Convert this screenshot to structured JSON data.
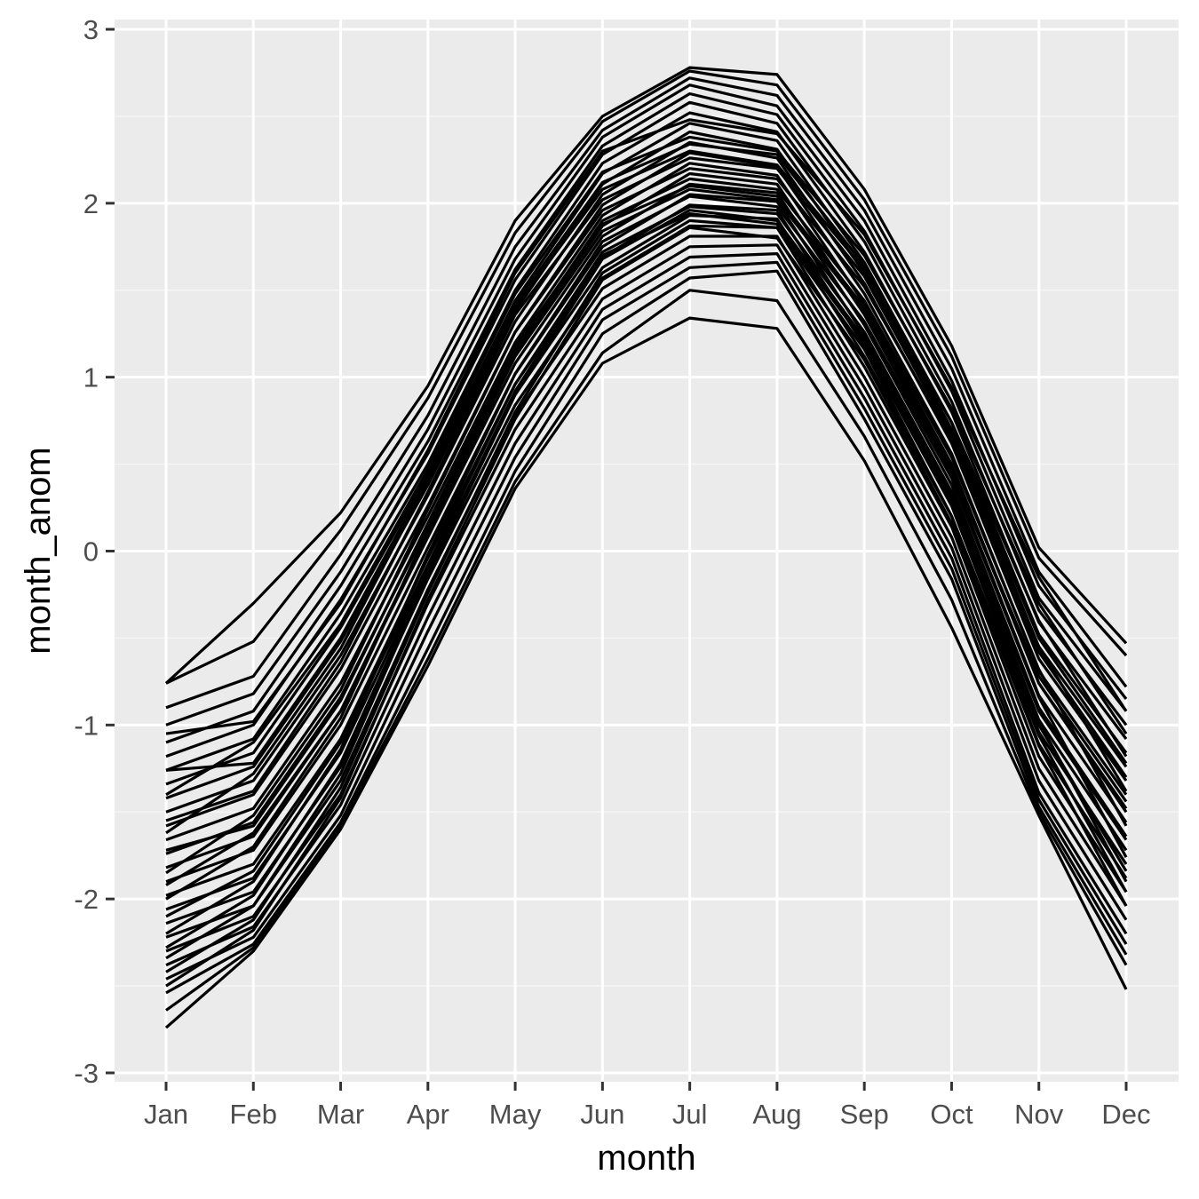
{
  "chart_data": {
    "type": "line",
    "title": "",
    "xlabel": "month",
    "ylabel": "month_anom",
    "categories": [
      "Jan",
      "Feb",
      "Mar",
      "Apr",
      "May",
      "Jun",
      "Jul",
      "Aug",
      "Sep",
      "Oct",
      "Nov",
      "Dec"
    ],
    "yticks": [
      3,
      2,
      1,
      0,
      -1,
      -2,
      -3
    ],
    "ytick_labels": [
      "3",
      "2",
      "1",
      "0",
      "-1",
      "-2",
      "-3"
    ],
    "ylim": [
      -3.0,
      3.0
    ],
    "grid": true,
    "legend": "none",
    "colors": {
      "panel_background": "#ebebeb",
      "grid_major": "#ffffff",
      "grid_minor": "#f5f5f5",
      "line": "#000000",
      "tick": "#333333"
    },
    "series_note_values": [],
    "series": [
      {
        "values": [
          -0.76,
          -0.3,
          0.22,
          0.95,
          1.9,
          2.5,
          2.78,
          2.74,
          2.08,
          1.18,
          0.02,
          -0.53
        ]
      },
      {
        "values": [
          -0.76,
          -0.52,
          0.12,
          0.88,
          1.83,
          2.47,
          2.76,
          2.68,
          2.02,
          1.12,
          -0.04,
          -0.6
        ]
      },
      {
        "values": [
          -0.9,
          -0.72,
          -0.02,
          0.78,
          1.75,
          2.42,
          2.72,
          2.62,
          1.96,
          1.05,
          -0.12,
          -0.78
        ]
      },
      {
        "values": [
          -1.0,
          -0.82,
          -0.12,
          0.7,
          1.68,
          2.38,
          2.68,
          2.56,
          1.9,
          0.98,
          -0.2,
          -0.85
        ]
      },
      {
        "values": [
          -1.1,
          -0.92,
          -0.2,
          0.63,
          1.62,
          2.33,
          2.63,
          2.51,
          1.84,
          0.92,
          -0.27,
          -0.92
        ]
      },
      {
        "values": [
          -1.18,
          -1.0,
          -0.28,
          0.56,
          1.56,
          2.28,
          2.58,
          2.46,
          1.78,
          0.86,
          -0.34,
          -1.0
        ]
      },
      {
        "values": [
          -1.26,
          -1.08,
          -0.36,
          0.5,
          1.5,
          2.23,
          2.52,
          2.41,
          1.72,
          0.8,
          -0.41,
          -1.08
        ]
      },
      {
        "values": [
          -1.34,
          -1.16,
          -0.44,
          0.44,
          1.44,
          2.17,
          2.46,
          2.36,
          1.66,
          0.74,
          -0.48,
          -1.16
        ]
      },
      {
        "values": [
          -1.42,
          -1.24,
          -0.52,
          0.38,
          1.38,
          2.11,
          2.41,
          2.31,
          1.6,
          0.68,
          -0.55,
          -1.24
        ]
      },
      {
        "values": [
          -1.5,
          -1.32,
          -0.6,
          0.32,
          1.32,
          2.05,
          2.35,
          2.26,
          1.54,
          0.62,
          -0.62,
          -1.32
        ]
      },
      {
        "values": [
          -1.58,
          -1.4,
          -0.68,
          0.26,
          1.26,
          1.99,
          2.29,
          2.21,
          1.48,
          0.56,
          -0.69,
          -1.4
        ]
      },
      {
        "values": [
          -1.66,
          -1.48,
          -0.76,
          0.2,
          1.2,
          1.93,
          2.23,
          2.16,
          1.42,
          0.5,
          -0.76,
          -1.48
        ]
      },
      {
        "values": [
          -1.74,
          -1.56,
          -0.84,
          0.14,
          1.14,
          1.87,
          2.17,
          2.11,
          1.36,
          0.44,
          -0.83,
          -1.56
        ]
      },
      {
        "values": [
          -1.82,
          -1.64,
          -0.92,
          0.08,
          1.08,
          1.81,
          2.11,
          2.06,
          1.3,
          0.38,
          -0.9,
          -1.64
        ]
      },
      {
        "values": [
          -1.9,
          -1.72,
          -1.0,
          0.02,
          1.02,
          1.75,
          2.05,
          2.01,
          1.24,
          0.32,
          -0.97,
          -1.72
        ]
      },
      {
        "values": [
          -1.98,
          -1.8,
          -1.08,
          -0.04,
          0.96,
          1.69,
          1.99,
          1.96,
          1.18,
          0.26,
          -1.04,
          -1.8
        ]
      },
      {
        "values": [
          -2.06,
          -1.88,
          -1.16,
          -0.1,
          0.9,
          1.63,
          1.93,
          1.91,
          1.12,
          0.2,
          -1.11,
          -1.88
        ]
      },
      {
        "values": [
          -2.14,
          -1.96,
          -1.24,
          -0.16,
          0.84,
          1.57,
          1.87,
          1.86,
          1.06,
          0.14,
          -1.18,
          -1.96
        ]
      },
      {
        "values": [
          -2.22,
          -2.04,
          -1.32,
          -0.22,
          0.78,
          1.51,
          1.81,
          1.81,
          1.0,
          0.08,
          -1.25,
          -2.04
        ]
      },
      {
        "values": [
          -2.3,
          -2.1,
          -1.4,
          -0.3,
          0.7,
          1.45,
          1.75,
          1.76,
          0.94,
          0.02,
          -1.32,
          -2.12
        ]
      },
      {
        "values": [
          -2.38,
          -2.16,
          -1.46,
          -0.38,
          0.62,
          1.39,
          1.69,
          1.71,
          0.88,
          -0.04,
          -1.39,
          -2.2
        ]
      },
      {
        "values": [
          -2.46,
          -2.22,
          -1.52,
          -0.46,
          0.54,
          1.33,
          1.63,
          1.66,
          0.82,
          -0.1,
          -1.43,
          -2.26
        ]
      },
      {
        "values": [
          -2.54,
          -2.26,
          -1.56,
          -0.56,
          0.46,
          1.25,
          1.57,
          1.61,
          0.76,
          -0.16,
          -1.47,
          -2.32
        ]
      },
      {
        "values": [
          -2.64,
          -2.28,
          -1.58,
          -0.62,
          0.4,
          1.14,
          1.5,
          1.44,
          0.66,
          -0.28,
          -1.5,
          -2.38
        ]
      },
      {
        "values": [
          -2.74,
          -2.3,
          -1.6,
          -0.66,
          0.36,
          1.08,
          1.34,
          1.28,
          0.52,
          -0.44,
          -1.52,
          -2.52
        ]
      },
      {
        "values": [
          -1.05,
          -0.98,
          -0.3,
          0.58,
          1.6,
          2.3,
          2.48,
          2.4,
          1.82,
          0.94,
          -0.15,
          -0.92
        ]
      },
      {
        "values": [
          -1.4,
          -1.1,
          -0.42,
          0.47,
          1.48,
          2.18,
          2.38,
          2.3,
          1.7,
          0.82,
          -0.3,
          -1.05
        ]
      },
      {
        "values": [
          -1.62,
          -1.28,
          -0.56,
          0.4,
          1.4,
          2.08,
          2.3,
          2.22,
          1.62,
          0.74,
          -0.4,
          -1.18
        ]
      },
      {
        "values": [
          -1.85,
          -1.52,
          -0.8,
          0.24,
          1.26,
          1.96,
          2.2,
          2.14,
          1.52,
          0.64,
          -0.55,
          -1.38
        ]
      },
      {
        "values": [
          -2.0,
          -1.7,
          -0.96,
          0.12,
          1.16,
          1.9,
          2.14,
          2.08,
          1.44,
          0.54,
          -0.68,
          -1.58
        ]
      },
      {
        "values": [
          -2.2,
          -1.9,
          -1.14,
          -0.02,
          1.02,
          1.78,
          2.04,
          1.98,
          1.32,
          0.42,
          -0.84,
          -1.76
        ]
      },
      {
        "values": [
          -2.34,
          -2.04,
          -1.28,
          -0.14,
          0.9,
          1.68,
          1.96,
          1.9,
          1.22,
          0.3,
          -0.98,
          -1.9
        ]
      },
      {
        "values": [
          -2.5,
          -2.18,
          -1.42,
          -0.28,
          0.76,
          1.56,
          1.86,
          1.8,
          1.1,
          0.16,
          -1.12,
          -2.04
        ]
      },
      {
        "values": [
          -1.26,
          -1.22,
          -0.5,
          0.42,
          1.42,
          2.12,
          2.34,
          2.28,
          1.64,
          0.7,
          -0.5,
          -1.22
        ]
      },
      {
        "values": [
          -1.72,
          -1.58,
          -0.86,
          0.16,
          1.18,
          1.88,
          2.1,
          2.04,
          1.4,
          0.48,
          -0.76,
          -1.5
        ]
      },
      {
        "values": [
          -2.1,
          -1.84,
          -1.1,
          -0.08,
          0.96,
          1.72,
          1.98,
          1.94,
          1.26,
          0.34,
          -0.92,
          -1.66
        ]
      },
      {
        "values": [
          -2.42,
          -2.12,
          -1.36,
          -0.24,
          0.8,
          1.6,
          1.9,
          1.86,
          1.16,
          0.2,
          -1.06,
          -1.96
        ]
      },
      {
        "values": [
          -1.92,
          -1.62,
          -0.92,
          0.1,
          1.12,
          1.84,
          2.08,
          2.02,
          1.38,
          0.46,
          -0.72,
          -1.44
        ]
      },
      {
        "values": [
          -1.55,
          -1.38,
          -0.64,
          0.34,
          1.36,
          2.02,
          2.26,
          2.2,
          1.58,
          0.66,
          -0.58,
          -1.3
        ]
      },
      {
        "values": [
          -2.28,
          -1.98,
          -1.22,
          -0.12,
          0.92,
          1.7,
          1.94,
          1.88,
          1.2,
          0.28,
          -1.0,
          -1.84
        ]
      }
    ]
  }
}
